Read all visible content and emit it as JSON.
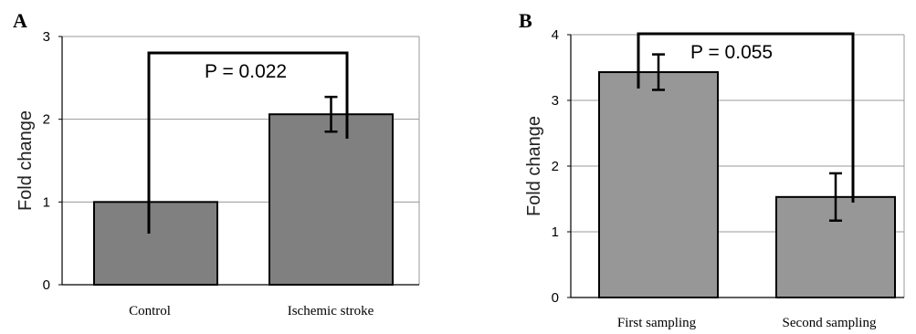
{
  "chart_data": [
    {
      "type": "bar",
      "panel": "A",
      "categories": [
        "Control",
        "Ischemic stroke"
      ],
      "values": [
        1.0,
        2.06
      ],
      "error": [
        0,
        0.21
      ],
      "ylabel": "Fold change",
      "xlabel": "",
      "ylim": [
        0,
        3
      ],
      "yticks": [
        "0",
        "1",
        "2",
        "3"
      ],
      "grid": true,
      "bar_color": "#808080",
      "annotation": "P = 0.022"
    },
    {
      "type": "bar",
      "panel": "B",
      "categories": [
        "First sampling",
        "Second sampling"
      ],
      "values": [
        3.43,
        1.53
      ],
      "error": [
        0.27,
        0.36
      ],
      "ylabel": "Fold change",
      "xlabel": "",
      "ylim": [
        0,
        4
      ],
      "yticks": [
        "0",
        "1",
        "2",
        "3",
        "4"
      ],
      "grid": true,
      "bar_color": "#979797",
      "annotation": "P = 0.055"
    }
  ]
}
